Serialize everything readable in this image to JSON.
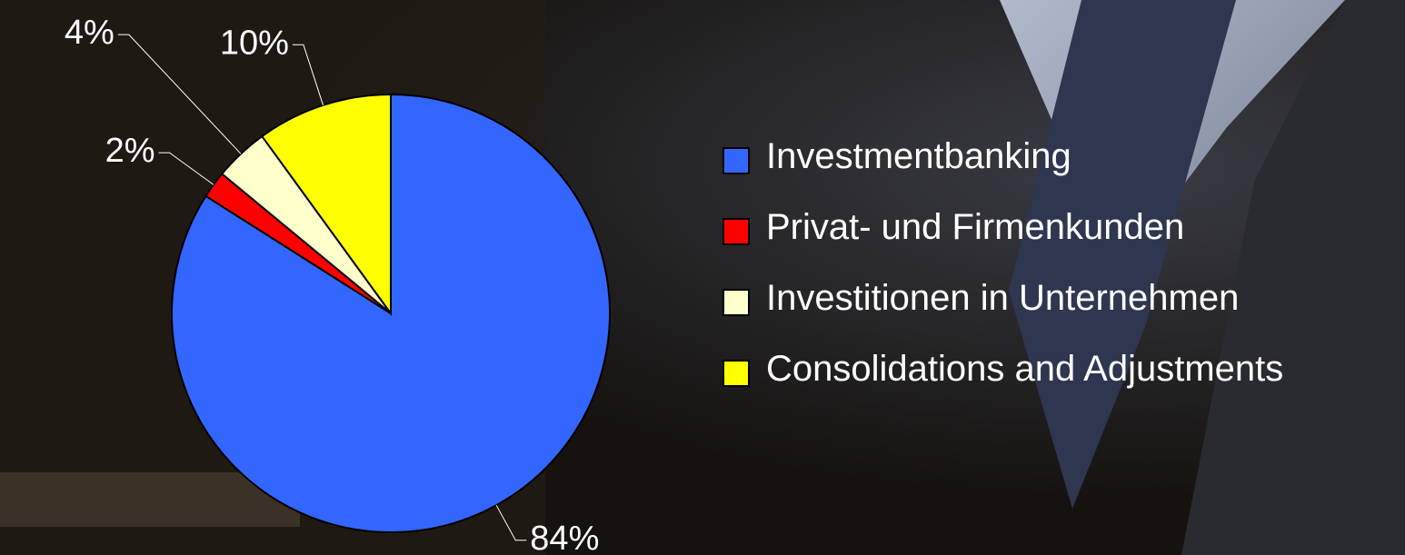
{
  "chart_data": {
    "type": "pie",
    "categories": [
      "Investmentbanking",
      "Privat- und Firmenkunden",
      "Investitionen in Unternehmen",
      "Consolidations and Adjustments"
    ],
    "values": [
      84,
      2,
      4,
      10
    ],
    "value_labels": [
      "84%",
      "2%",
      "4%",
      "10%"
    ],
    "colors": [
      "#3366ff",
      "#ff0000",
      "#ffffcc",
      "#ffff00"
    ],
    "legend": "right"
  }
}
